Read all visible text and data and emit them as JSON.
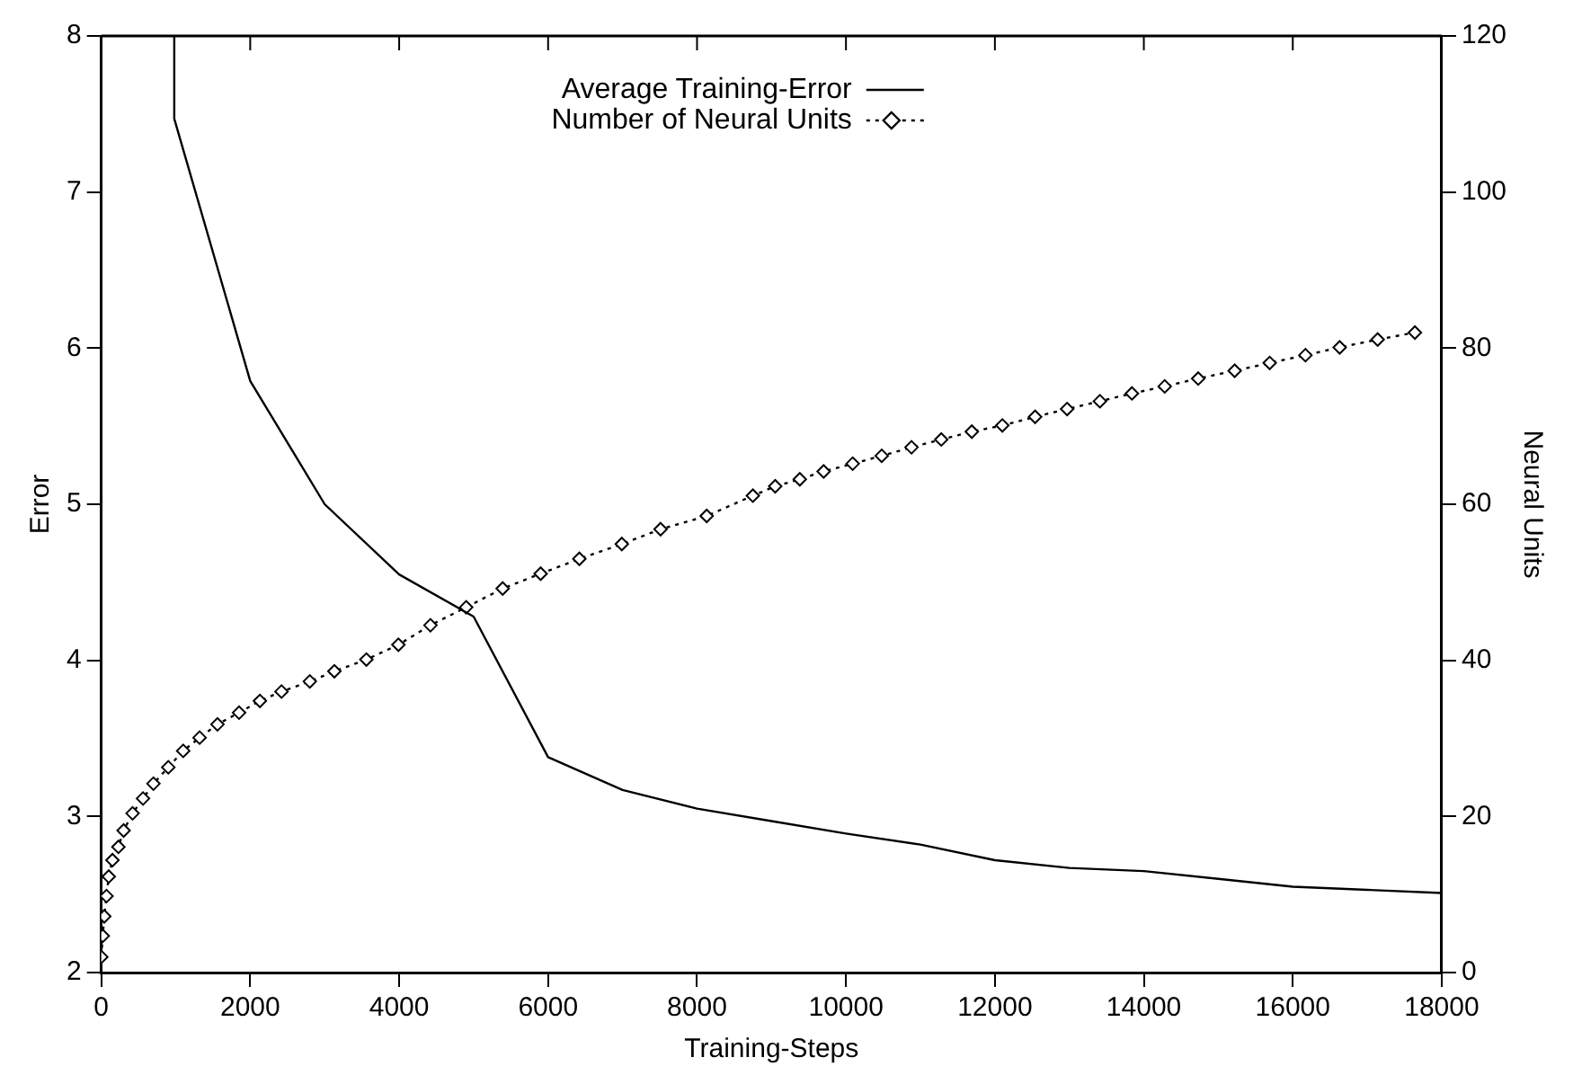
{
  "chart_data": {
    "type": "line",
    "xlabel": "Training-Steps",
    "ylabel": "Error",
    "y2label": "Neural Units",
    "xlim": [
      0,
      18000
    ],
    "xticks": [
      0,
      2000,
      4000,
      6000,
      8000,
      10000,
      12000,
      14000,
      16000,
      18000
    ],
    "ylim": [
      2,
      8
    ],
    "yticks": [
      2,
      3,
      4,
      5,
      6,
      7,
      8
    ],
    "y2lim": [
      0,
      120
    ],
    "y2ticks": [
      0,
      20,
      40,
      60,
      80,
      100,
      120
    ],
    "grid": false,
    "legend": "top",
    "series": [
      {
        "name": "Average Training-Error",
        "color": "#000000",
        "marker": "none",
        "line_style": "solid",
        "x": [
          980,
          980,
          2000,
          3000,
          4000,
          5000,
          6000,
          7000,
          8000,
          9000,
          10000,
          11000,
          12000,
          13000,
          14000,
          15000,
          16000,
          17000,
          18000
        ],
        "values": [
          8,
          7.47,
          5.79,
          5.0,
          4.55,
          4.28,
          3.38,
          3.17,
          3.05,
          2.97,
          2.89,
          2.82,
          2.72,
          2.67,
          2.65,
          2.6,
          2.55,
          2.53,
          2.51
        ]
      },
      {
        "name": "Number of Neural Units",
        "color": "#000000",
        "marker": "diamond",
        "line_style": "dotted",
        "axis": "y2",
        "x": [
          0,
          20,
          40,
          70,
          100,
          150,
          230,
          300,
          420,
          560,
          700,
          900,
          1100,
          1320,
          1560,
          1850,
          2130,
          2420,
          2800,
          3130,
          3560,
          3990,
          4420,
          4900,
          5390,
          5900,
          6420,
          6990,
          7510,
          8130,
          8750,
          9050,
          9380,
          9700,
          10090,
          10480,
          10880,
          11280,
          11690,
          12100,
          12540,
          12970,
          13410,
          13840,
          14280,
          14730,
          15220,
          15690,
          16170,
          16630,
          17140,
          17640
        ],
        "values": [
          2.0,
          4.7,
          7.2,
          9.8,
          12.3,
          14.4,
          16.1,
          18.2,
          20.4,
          22.3,
          24.2,
          26.3,
          28.4,
          30.1,
          31.8,
          33.3,
          34.8,
          36.0,
          37.3,
          38.6,
          40.1,
          42.0,
          44.5,
          46.8,
          49.2,
          51.1,
          53.0,
          54.9,
          56.8,
          58.5,
          61.1,
          62.3,
          63.2,
          64.2,
          65.2,
          66.2,
          67.3,
          68.3,
          69.3,
          70.1,
          71.2,
          72.2,
          73.2,
          74.2,
          75.1,
          76.1,
          77.1,
          78.1,
          79.1,
          80.1,
          81.1,
          82.0
        ]
      }
    ]
  }
}
